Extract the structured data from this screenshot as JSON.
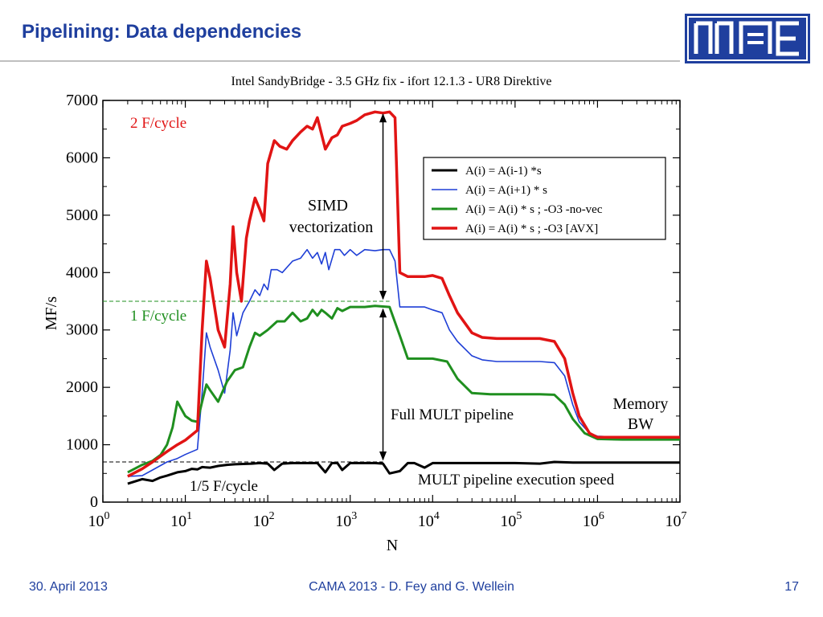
{
  "slide": {
    "title": "Pipelining: Data dependencies",
    "footer": {
      "date": "30. April 2013",
      "center": "CAMA 2013 - D. Fey and G. Wellein",
      "page": "17"
    },
    "colors": {
      "title": "#1f3f9e",
      "logo": "#1f3f9e",
      "rule": "#bfbfbf"
    }
  },
  "chart_data": {
    "type": "line",
    "title": "Intel SandyBridge - 3.5 GHz fix - ifort 12.1.3 - UR8 Direktive",
    "xlabel": "N",
    "ylabel": "MF/s",
    "xscale": "log",
    "xlim": [
      1,
      10000000
    ],
    "ylim": [
      0,
      7000
    ],
    "x_ticks": [
      {
        "base": "10",
        "exp": "0",
        "value": 1
      },
      {
        "base": "10",
        "exp": "1",
        "value": 10
      },
      {
        "base": "10",
        "exp": "2",
        "value": 100
      },
      {
        "base": "10",
        "exp": "3",
        "value": 1000
      },
      {
        "base": "10",
        "exp": "4",
        "value": 10000
      },
      {
        "base": "10",
        "exp": "5",
        "value": 100000
      },
      {
        "base": "10",
        "exp": "6",
        "value": 1000000
      },
      {
        "base": "10",
        "exp": "7",
        "value": 10000000
      }
    ],
    "y_ticks": [
      0,
      1000,
      2000,
      3000,
      4000,
      5000,
      6000,
      7000
    ],
    "legend_position": "top-right",
    "series": [
      {
        "name": "A(i) = A(i-1) *s",
        "color": "#000000",
        "width": 3,
        "points": [
          [
            2,
            320
          ],
          [
            3,
            400
          ],
          [
            4,
            370
          ],
          [
            5,
            430
          ],
          [
            6,
            460
          ],
          [
            8,
            520
          ],
          [
            10,
            540
          ],
          [
            12,
            580
          ],
          [
            14,
            570
          ],
          [
            16,
            610
          ],
          [
            20,
            600
          ],
          [
            25,
            630
          ],
          [
            32,
            650
          ],
          [
            40,
            660
          ],
          [
            50,
            665
          ],
          [
            64,
            670
          ],
          [
            80,
            680
          ],
          [
            100,
            670
          ],
          [
            120,
            560
          ],
          [
            150,
            670
          ],
          [
            200,
            680
          ],
          [
            250,
            680
          ],
          [
            300,
            680
          ],
          [
            400,
            680
          ],
          [
            500,
            520
          ],
          [
            600,
            680
          ],
          [
            700,
            680
          ],
          [
            800,
            560
          ],
          [
            1000,
            680
          ],
          [
            1500,
            680
          ],
          [
            2000,
            680
          ],
          [
            2500,
            670
          ],
          [
            3000,
            500
          ],
          [
            4000,
            540
          ],
          [
            5000,
            680
          ],
          [
            6000,
            680
          ],
          [
            8000,
            600
          ],
          [
            10000,
            680
          ],
          [
            15000,
            680
          ],
          [
            30000,
            680
          ],
          [
            50000,
            680
          ],
          [
            100000,
            680
          ],
          [
            200000,
            670
          ],
          [
            300000,
            700
          ],
          [
            500000,
            690
          ],
          [
            1000000,
            690
          ],
          [
            3000000,
            690
          ],
          [
            10000000,
            690
          ]
        ]
      },
      {
        "name": "A(i) = A(i+1) * s",
        "color": "#1f3fd6",
        "width": 1.6,
        "points": [
          [
            2,
            450
          ],
          [
            3,
            460
          ],
          [
            4,
            560
          ],
          [
            6,
            700
          ],
          [
            8,
            760
          ],
          [
            10,
            830
          ],
          [
            14,
            920
          ],
          [
            16,
            1900
          ],
          [
            18,
            2950
          ],
          [
            20,
            2700
          ],
          [
            25,
            2300
          ],
          [
            30,
            1900
          ],
          [
            35,
            2650
          ],
          [
            38,
            3300
          ],
          [
            42,
            2900
          ],
          [
            50,
            3300
          ],
          [
            60,
            3500
          ],
          [
            70,
            3700
          ],
          [
            80,
            3600
          ],
          [
            90,
            3800
          ],
          [
            100,
            3700
          ],
          [
            110,
            4050
          ],
          [
            130,
            4050
          ],
          [
            150,
            4000
          ],
          [
            200,
            4200
          ],
          [
            250,
            4250
          ],
          [
            300,
            4400
          ],
          [
            350,
            4250
          ],
          [
            400,
            4350
          ],
          [
            450,
            4150
          ],
          [
            500,
            4350
          ],
          [
            550,
            4050
          ],
          [
            650,
            4400
          ],
          [
            750,
            4400
          ],
          [
            850,
            4300
          ],
          [
            1000,
            4400
          ],
          [
            1200,
            4300
          ],
          [
            1500,
            4400
          ],
          [
            2000,
            4380
          ],
          [
            2500,
            4400
          ],
          [
            3000,
            4400
          ],
          [
            3500,
            4200
          ],
          [
            4000,
            3400
          ],
          [
            5000,
            3400
          ],
          [
            8000,
            3400
          ],
          [
            10000,
            3350
          ],
          [
            13000,
            3300
          ],
          [
            16000,
            3000
          ],
          [
            20000,
            2800
          ],
          [
            30000,
            2550
          ],
          [
            40000,
            2480
          ],
          [
            60000,
            2450
          ],
          [
            100000,
            2450
          ],
          [
            200000,
            2450
          ],
          [
            300000,
            2430
          ],
          [
            400000,
            2200
          ],
          [
            500000,
            1700
          ],
          [
            600000,
            1400
          ],
          [
            800000,
            1200
          ],
          [
            1000000,
            1150
          ],
          [
            2000000,
            1130
          ],
          [
            10000000,
            1120
          ]
        ]
      },
      {
        "name": "A(i) = A(i) *  s ; -O3 -no-vec",
        "color": "#1f8f1f",
        "width": 3,
        "points": [
          [
            2,
            520
          ],
          [
            3,
            650
          ],
          [
            4,
            720
          ],
          [
            5,
            820
          ],
          [
            6,
            1000
          ],
          [
            7,
            1300
          ],
          [
            8,
            1750
          ],
          [
            10,
            1500
          ],
          [
            12,
            1420
          ],
          [
            14,
            1400
          ],
          [
            16,
            1750
          ],
          [
            18,
            2050
          ],
          [
            20,
            1950
          ],
          [
            25,
            1750
          ],
          [
            32,
            2100
          ],
          [
            40,
            2300
          ],
          [
            50,
            2350
          ],
          [
            60,
            2700
          ],
          [
            70,
            2950
          ],
          [
            80,
            2900
          ],
          [
            100,
            3000
          ],
          [
            130,
            3150
          ],
          [
            160,
            3150
          ],
          [
            200,
            3300
          ],
          [
            250,
            3150
          ],
          [
            300,
            3200
          ],
          [
            350,
            3350
          ],
          [
            400,
            3250
          ],
          [
            450,
            3350
          ],
          [
            500,
            3300
          ],
          [
            600,
            3200
          ],
          [
            700,
            3380
          ],
          [
            800,
            3330
          ],
          [
            1000,
            3400
          ],
          [
            1500,
            3400
          ],
          [
            2000,
            3420
          ],
          [
            3000,
            3400
          ],
          [
            4000,
            2900
          ],
          [
            5000,
            2500
          ],
          [
            8000,
            2500
          ],
          [
            10000,
            2500
          ],
          [
            15000,
            2450
          ],
          [
            20000,
            2150
          ],
          [
            30000,
            1900
          ],
          [
            50000,
            1880
          ],
          [
            100000,
            1880
          ],
          [
            200000,
            1880
          ],
          [
            300000,
            1870
          ],
          [
            400000,
            1700
          ],
          [
            500000,
            1450
          ],
          [
            700000,
            1200
          ],
          [
            1000000,
            1100
          ],
          [
            2000000,
            1090
          ],
          [
            10000000,
            1090
          ]
        ]
      },
      {
        "name": "A(i) = A(i) *  s ; -O3 [AVX]",
        "color": "#e11414",
        "width": 3.5,
        "points": [
          [
            2,
            450
          ],
          [
            3,
            580
          ],
          [
            4,
            700
          ],
          [
            6,
            880
          ],
          [
            8,
            1000
          ],
          [
            10,
            1080
          ],
          [
            14,
            1250
          ],
          [
            16,
            3000
          ],
          [
            18,
            4200
          ],
          [
            20,
            3900
          ],
          [
            25,
            3000
          ],
          [
            30,
            2700
          ],
          [
            35,
            3800
          ],
          [
            38,
            4800
          ],
          [
            42,
            4000
          ],
          [
            48,
            3500
          ],
          [
            55,
            4600
          ],
          [
            60,
            4900
          ],
          [
            70,
            5300
          ],
          [
            80,
            5100
          ],
          [
            90,
            4900
          ],
          [
            100,
            5900
          ],
          [
            120,
            6300
          ],
          [
            140,
            6200
          ],
          [
            170,
            6150
          ],
          [
            200,
            6300
          ],
          [
            250,
            6450
          ],
          [
            300,
            6550
          ],
          [
            350,
            6500
          ],
          [
            400,
            6700
          ],
          [
            500,
            6150
          ],
          [
            600,
            6350
          ],
          [
            700,
            6400
          ],
          [
            800,
            6550
          ],
          [
            1000,
            6600
          ],
          [
            1200,
            6650
          ],
          [
            1500,
            6750
          ],
          [
            2000,
            6800
          ],
          [
            2500,
            6780
          ],
          [
            3000,
            6800
          ],
          [
            3500,
            6700
          ],
          [
            4000,
            4000
          ],
          [
            5000,
            3930
          ],
          [
            8000,
            3930
          ],
          [
            10000,
            3950
          ],
          [
            13000,
            3900
          ],
          [
            16000,
            3600
          ],
          [
            20000,
            3300
          ],
          [
            30000,
            2950
          ],
          [
            40000,
            2870
          ],
          [
            60000,
            2850
          ],
          [
            100000,
            2850
          ],
          [
            200000,
            2850
          ],
          [
            300000,
            2800
          ],
          [
            400000,
            2500
          ],
          [
            500000,
            1900
          ],
          [
            600000,
            1500
          ],
          [
            800000,
            1200
          ],
          [
            1000000,
            1130
          ],
          [
            2000000,
            1130
          ],
          [
            10000000,
            1130
          ]
        ]
      }
    ],
    "reference_lines": [
      {
        "label": "2 F/cycle",
        "value": 7000,
        "color": "#e11414",
        "dashed": false
      },
      {
        "label": "1 F/cycle",
        "value": 3500,
        "color": "#1f8f1f",
        "dashed": true
      },
      {
        "label": "1/5 F/cycle",
        "value": 700,
        "color": "#000000",
        "dashed": true
      }
    ],
    "annotations": {
      "simd": [
        "SIMD",
        "vectorization"
      ],
      "full_mult": "Full MULT pipeline",
      "memory": [
        "Memory",
        "BW"
      ],
      "mult_speed": "MULT pipeline execution speed",
      "arrow_x": 2500
    }
  }
}
